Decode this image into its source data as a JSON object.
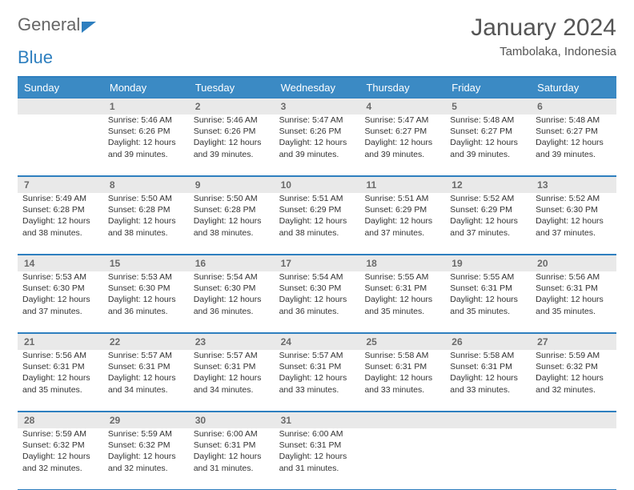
{
  "logo": {
    "textA": "General",
    "textB": "Blue"
  },
  "title": "January 2024",
  "location": "Tambolaka, Indonesia",
  "colors": {
    "header_bg": "#3b8ac4",
    "header_text": "#ffffff",
    "border": "#2e7fbf",
    "number_bg": "#e9e9e9",
    "number_text": "#6a6a6a",
    "body_text": "#333333",
    "page_bg": "#ffffff"
  },
  "dayNames": [
    "Sunday",
    "Monday",
    "Tuesday",
    "Wednesday",
    "Thursday",
    "Friday",
    "Saturday"
  ],
  "weeks": [
    [
      {
        "n": "",
        "l1": "",
        "l2": "",
        "l3": "",
        "l4": ""
      },
      {
        "n": "1",
        "l1": "Sunrise: 5:46 AM",
        "l2": "Sunset: 6:26 PM",
        "l3": "Daylight: 12 hours",
        "l4": "and 39 minutes."
      },
      {
        "n": "2",
        "l1": "Sunrise: 5:46 AM",
        "l2": "Sunset: 6:26 PM",
        "l3": "Daylight: 12 hours",
        "l4": "and 39 minutes."
      },
      {
        "n": "3",
        "l1": "Sunrise: 5:47 AM",
        "l2": "Sunset: 6:26 PM",
        "l3": "Daylight: 12 hours",
        "l4": "and 39 minutes."
      },
      {
        "n": "4",
        "l1": "Sunrise: 5:47 AM",
        "l2": "Sunset: 6:27 PM",
        "l3": "Daylight: 12 hours",
        "l4": "and 39 minutes."
      },
      {
        "n": "5",
        "l1": "Sunrise: 5:48 AM",
        "l2": "Sunset: 6:27 PM",
        "l3": "Daylight: 12 hours",
        "l4": "and 39 minutes."
      },
      {
        "n": "6",
        "l1": "Sunrise: 5:48 AM",
        "l2": "Sunset: 6:27 PM",
        "l3": "Daylight: 12 hours",
        "l4": "and 39 minutes."
      }
    ],
    [
      {
        "n": "7",
        "l1": "Sunrise: 5:49 AM",
        "l2": "Sunset: 6:28 PM",
        "l3": "Daylight: 12 hours",
        "l4": "and 38 minutes."
      },
      {
        "n": "8",
        "l1": "Sunrise: 5:50 AM",
        "l2": "Sunset: 6:28 PM",
        "l3": "Daylight: 12 hours",
        "l4": "and 38 minutes."
      },
      {
        "n": "9",
        "l1": "Sunrise: 5:50 AM",
        "l2": "Sunset: 6:28 PM",
        "l3": "Daylight: 12 hours",
        "l4": "and 38 minutes."
      },
      {
        "n": "10",
        "l1": "Sunrise: 5:51 AM",
        "l2": "Sunset: 6:29 PM",
        "l3": "Daylight: 12 hours",
        "l4": "and 38 minutes."
      },
      {
        "n": "11",
        "l1": "Sunrise: 5:51 AM",
        "l2": "Sunset: 6:29 PM",
        "l3": "Daylight: 12 hours",
        "l4": "and 37 minutes."
      },
      {
        "n": "12",
        "l1": "Sunrise: 5:52 AM",
        "l2": "Sunset: 6:29 PM",
        "l3": "Daylight: 12 hours",
        "l4": "and 37 minutes."
      },
      {
        "n": "13",
        "l1": "Sunrise: 5:52 AM",
        "l2": "Sunset: 6:30 PM",
        "l3": "Daylight: 12 hours",
        "l4": "and 37 minutes."
      }
    ],
    [
      {
        "n": "14",
        "l1": "Sunrise: 5:53 AM",
        "l2": "Sunset: 6:30 PM",
        "l3": "Daylight: 12 hours",
        "l4": "and 37 minutes."
      },
      {
        "n": "15",
        "l1": "Sunrise: 5:53 AM",
        "l2": "Sunset: 6:30 PM",
        "l3": "Daylight: 12 hours",
        "l4": "and 36 minutes."
      },
      {
        "n": "16",
        "l1": "Sunrise: 5:54 AM",
        "l2": "Sunset: 6:30 PM",
        "l3": "Daylight: 12 hours",
        "l4": "and 36 minutes."
      },
      {
        "n": "17",
        "l1": "Sunrise: 5:54 AM",
        "l2": "Sunset: 6:30 PM",
        "l3": "Daylight: 12 hours",
        "l4": "and 36 minutes."
      },
      {
        "n": "18",
        "l1": "Sunrise: 5:55 AM",
        "l2": "Sunset: 6:31 PM",
        "l3": "Daylight: 12 hours",
        "l4": "and 35 minutes."
      },
      {
        "n": "19",
        "l1": "Sunrise: 5:55 AM",
        "l2": "Sunset: 6:31 PM",
        "l3": "Daylight: 12 hours",
        "l4": "and 35 minutes."
      },
      {
        "n": "20",
        "l1": "Sunrise: 5:56 AM",
        "l2": "Sunset: 6:31 PM",
        "l3": "Daylight: 12 hours",
        "l4": "and 35 minutes."
      }
    ],
    [
      {
        "n": "21",
        "l1": "Sunrise: 5:56 AM",
        "l2": "Sunset: 6:31 PM",
        "l3": "Daylight: 12 hours",
        "l4": "and 35 minutes."
      },
      {
        "n": "22",
        "l1": "Sunrise: 5:57 AM",
        "l2": "Sunset: 6:31 PM",
        "l3": "Daylight: 12 hours",
        "l4": "and 34 minutes."
      },
      {
        "n": "23",
        "l1": "Sunrise: 5:57 AM",
        "l2": "Sunset: 6:31 PM",
        "l3": "Daylight: 12 hours",
        "l4": "and 34 minutes."
      },
      {
        "n": "24",
        "l1": "Sunrise: 5:57 AM",
        "l2": "Sunset: 6:31 PM",
        "l3": "Daylight: 12 hours",
        "l4": "and 33 minutes."
      },
      {
        "n": "25",
        "l1": "Sunrise: 5:58 AM",
        "l2": "Sunset: 6:31 PM",
        "l3": "Daylight: 12 hours",
        "l4": "and 33 minutes."
      },
      {
        "n": "26",
        "l1": "Sunrise: 5:58 AM",
        "l2": "Sunset: 6:31 PM",
        "l3": "Daylight: 12 hours",
        "l4": "and 33 minutes."
      },
      {
        "n": "27",
        "l1": "Sunrise: 5:59 AM",
        "l2": "Sunset: 6:32 PM",
        "l3": "Daylight: 12 hours",
        "l4": "and 32 minutes."
      }
    ],
    [
      {
        "n": "28",
        "l1": "Sunrise: 5:59 AM",
        "l2": "Sunset: 6:32 PM",
        "l3": "Daylight: 12 hours",
        "l4": "and 32 minutes."
      },
      {
        "n": "29",
        "l1": "Sunrise: 5:59 AM",
        "l2": "Sunset: 6:32 PM",
        "l3": "Daylight: 12 hours",
        "l4": "and 32 minutes."
      },
      {
        "n": "30",
        "l1": "Sunrise: 6:00 AM",
        "l2": "Sunset: 6:31 PM",
        "l3": "Daylight: 12 hours",
        "l4": "and 31 minutes."
      },
      {
        "n": "31",
        "l1": "Sunrise: 6:00 AM",
        "l2": "Sunset: 6:31 PM",
        "l3": "Daylight: 12 hours",
        "l4": "and 31 minutes."
      },
      {
        "n": "",
        "l1": "",
        "l2": "",
        "l3": "",
        "l4": ""
      },
      {
        "n": "",
        "l1": "",
        "l2": "",
        "l3": "",
        "l4": ""
      },
      {
        "n": "",
        "l1": "",
        "l2": "",
        "l3": "",
        "l4": ""
      }
    ]
  ]
}
